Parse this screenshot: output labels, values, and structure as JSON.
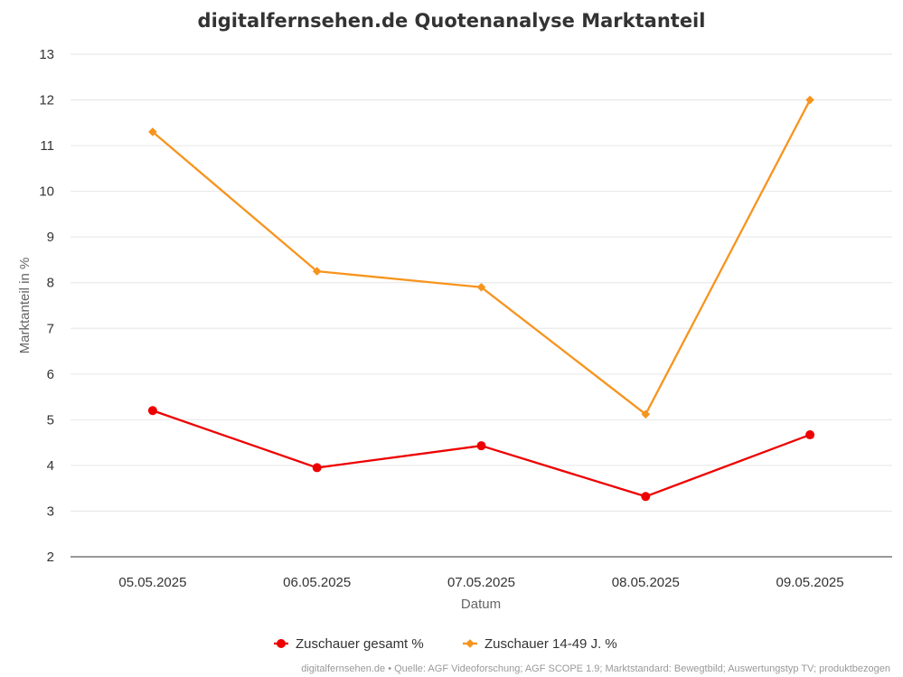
{
  "chart_data": {
    "type": "line",
    "title": "digitalfernsehen.de Quotenanalyse Marktanteil",
    "xlabel": "Datum",
    "ylabel": "Marktanteil in %",
    "categories": [
      "05.05.2025",
      "06.05.2025",
      "07.05.2025",
      "08.05.2025",
      "09.05.2025"
    ],
    "ylim": [
      2,
      13
    ],
    "yticks": [
      "2",
      "3",
      "4",
      "5",
      "6",
      "7",
      "8",
      "9",
      "10",
      "11",
      "12",
      "13"
    ],
    "grid": true,
    "legend_position": "bottom-center",
    "series": [
      {
        "name": "Zuschauer gesamt %",
        "values": [
          5.2,
          3.95,
          4.43,
          3.32,
          4.67
        ],
        "color": "#ee0000",
        "marker": "circle"
      },
      {
        "name": "Zuschauer 14-49 J. %",
        "values": [
          11.3,
          8.25,
          7.9,
          5.12,
          12.0
        ],
        "color": "#f7941d",
        "marker": "diamond"
      }
    ]
  },
  "credits": "digitalfernsehen.de • Quelle: AGF Videoforschung; AGF SCOPE 1.9; Marktstandard: Bewegtbild; Auswertungstyp TV; produktbezogen"
}
